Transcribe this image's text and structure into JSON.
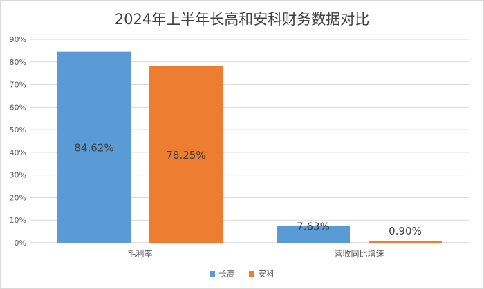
{
  "chart_data": {
    "type": "bar",
    "title": "2024年上半年长高和安科财务数据对比",
    "categories": [
      "毛利率",
      "营收同比增速"
    ],
    "series": [
      {
        "name": "长高",
        "color": "#5b9bd5",
        "values": [
          84.62,
          7.63
        ],
        "labels": [
          "84.62%",
          "7.63%"
        ]
      },
      {
        "name": "安科",
        "color": "#ed7d31",
        "values": [
          78.25,
          0.9
        ],
        "labels": [
          "78.25%",
          "0.90%"
        ]
      }
    ],
    "ylim": [
      0,
      90
    ],
    "yticks": [
      "0%",
      "10%",
      "20%",
      "30%",
      "40%",
      "50%",
      "60%",
      "70%",
      "80%",
      "90%"
    ],
    "xlabel": "",
    "ylabel": "",
    "grid": true,
    "legend_position": "bottom"
  }
}
